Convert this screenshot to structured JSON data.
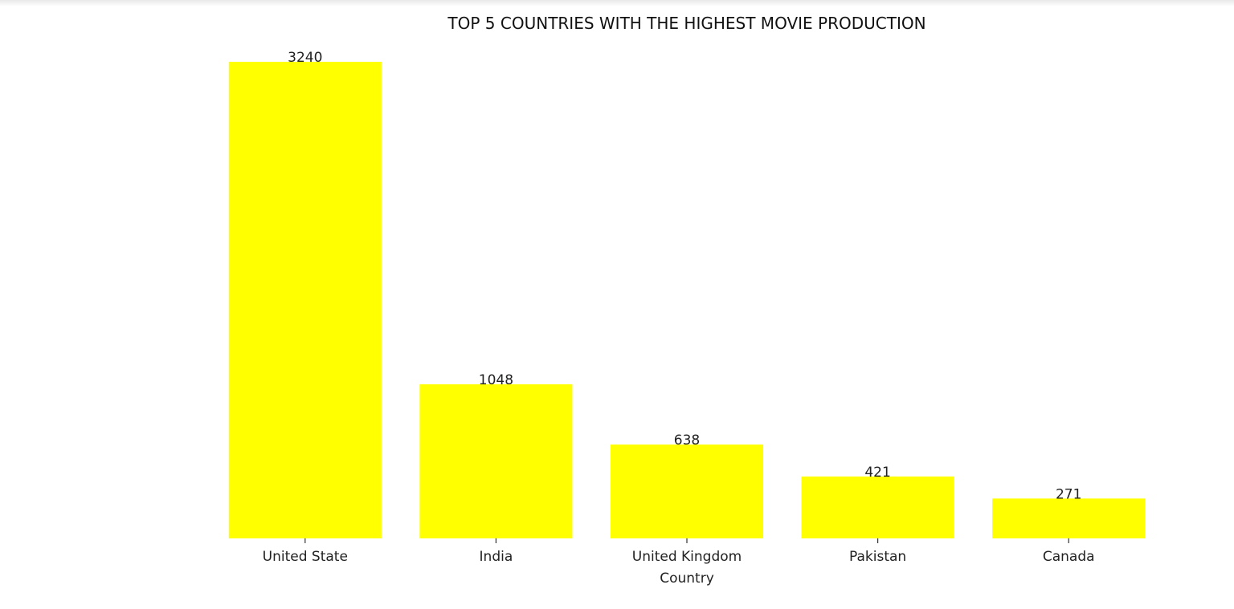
{
  "colors": {
    "bar": "#ffff00",
    "tick": "#333333",
    "text": "#222222"
  },
  "chart_data": {
    "type": "bar",
    "title": "TOP 5 COUNTRIES WITH THE HIGHEST MOVIE PRODUCTION",
    "xlabel": "Country",
    "ylabel": "",
    "categories": [
      "United State",
      "India",
      "United Kingdom",
      "Pakistan",
      "Canada"
    ],
    "values": [
      3240,
      1048,
      638,
      421,
      271
    ],
    "value_labels": [
      "3240",
      "1048",
      "638",
      "421",
      "271"
    ],
    "ylim": [
      0,
      3240
    ],
    "grid": false,
    "legend": "none"
  }
}
